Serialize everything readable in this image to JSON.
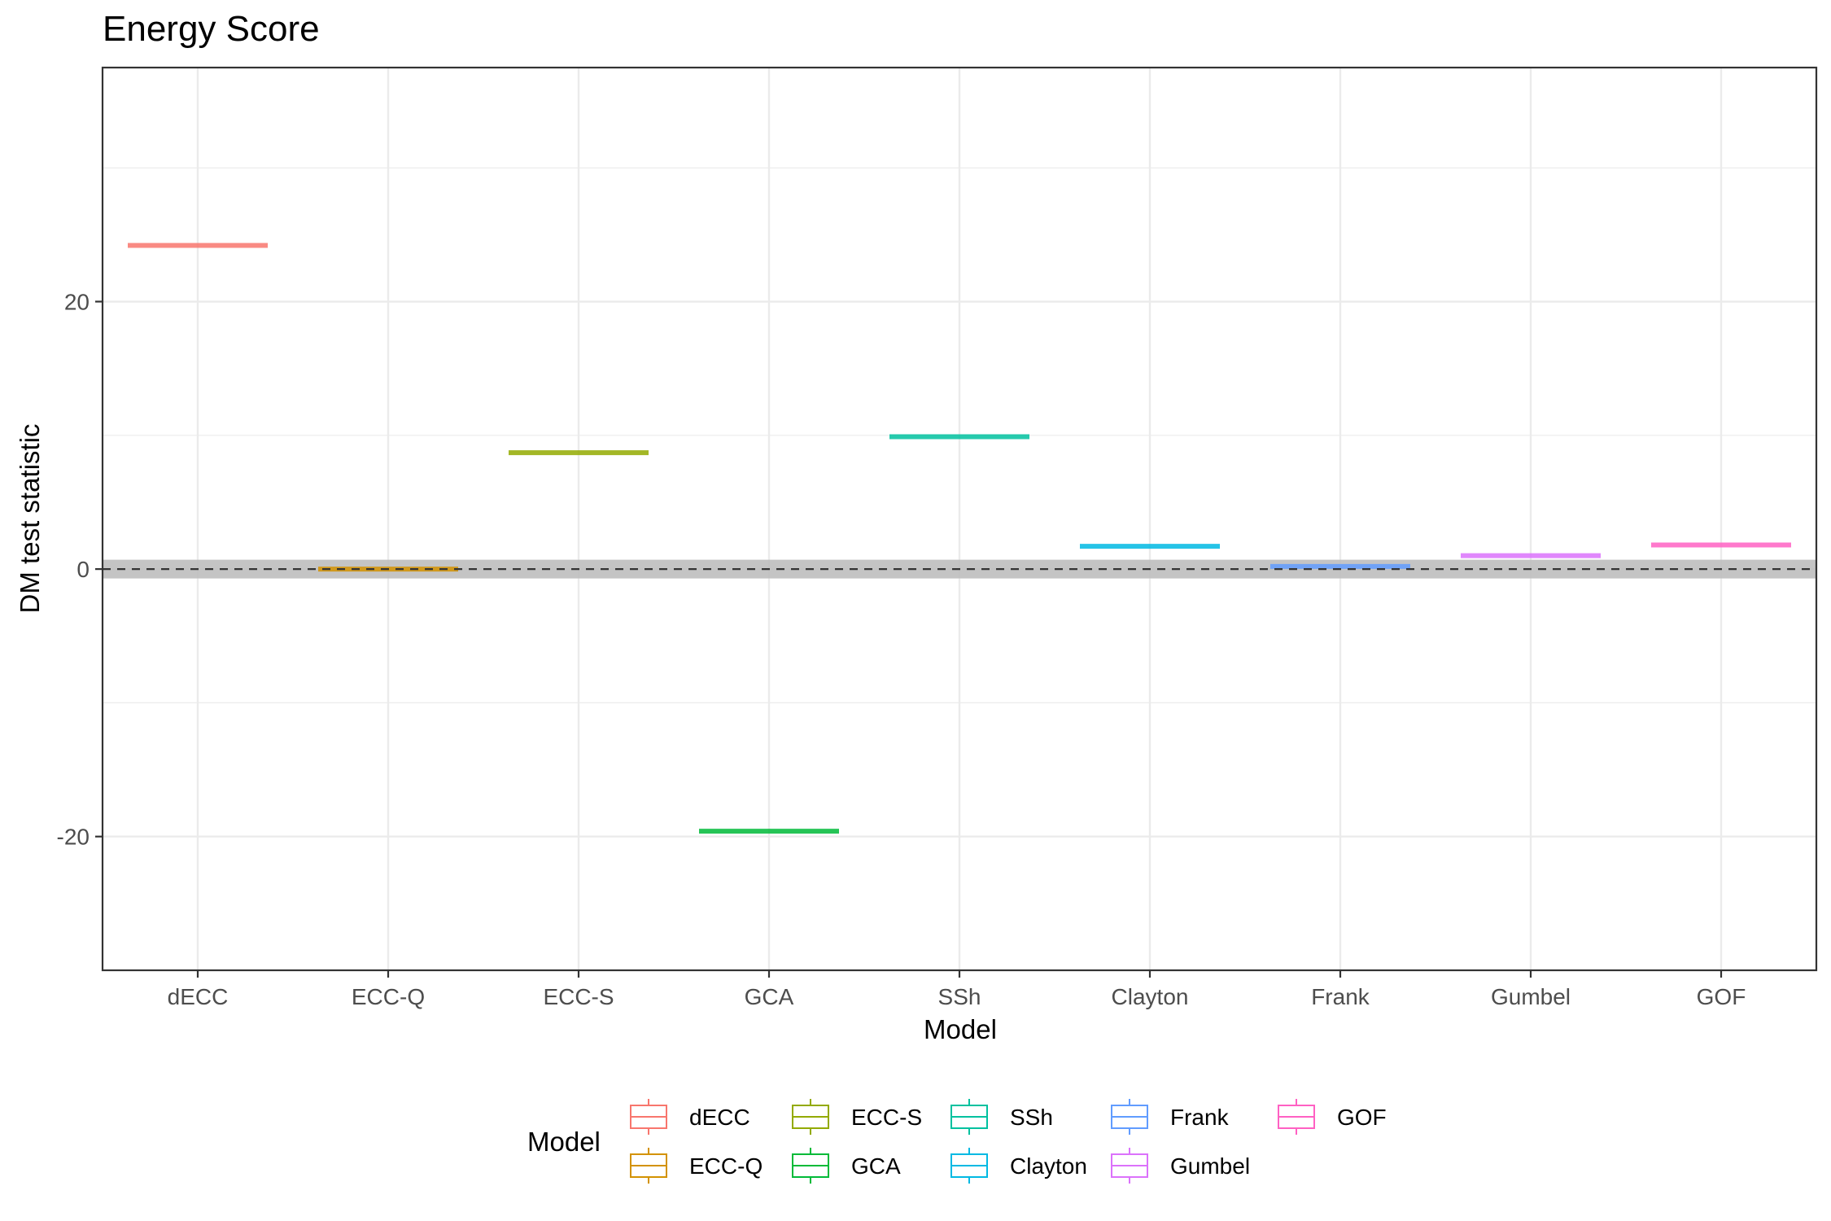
{
  "chart_data": {
    "type": "boxplot",
    "title": "Energy Score",
    "xlabel": "Model",
    "ylabel": "DM test statistic",
    "ylim": [
      -30,
      37.5
    ],
    "yticks": [
      -20,
      0,
      20
    ],
    "ytick_labels": [
      "-20",
      "0",
      "20"
    ],
    "grid": true,
    "reference_line": {
      "y": 0,
      "style": "dashed",
      "band": [
        -0.7,
        0.7
      ]
    },
    "categories": [
      "dECC",
      "ECC-Q",
      "ECC-S",
      "GCA",
      "SSh",
      "Clayton",
      "Frank",
      "Gumbel",
      "GOF"
    ],
    "series": [
      {
        "name": "dECC",
        "value": 24.2,
        "color": "#F8766D"
      },
      {
        "name": "ECC-Q",
        "value": 0.0,
        "color": "#D39200"
      },
      {
        "name": "ECC-S",
        "value": 8.7,
        "color": "#93AA00"
      },
      {
        "name": "GCA",
        "value": -19.6,
        "color": "#00BA38"
      },
      {
        "name": "SSh",
        "value": 9.9,
        "color": "#00C19F"
      },
      {
        "name": "Clayton",
        "value": 1.7,
        "color": "#00B9E3"
      },
      {
        "name": "Frank",
        "value": 0.2,
        "color": "#619CFF"
      },
      {
        "name": "Gumbel",
        "value": 1.0,
        "color": "#DB72FB"
      },
      {
        "name": "GOF",
        "value": 1.8,
        "color": "#FF61C3"
      }
    ],
    "legend": {
      "title": "Model",
      "position": "bottom",
      "rows": [
        [
          "dECC",
          "ECC-S",
          "SSh",
          "Frank",
          "GOF"
        ],
        [
          "ECC-Q",
          "GCA",
          "Clayton",
          "Gumbel"
        ]
      ]
    }
  },
  "colors": {
    "panel_border": "#333333",
    "grid": "#ebebeb",
    "band": "#bebebe",
    "ref_line": "#333333"
  }
}
